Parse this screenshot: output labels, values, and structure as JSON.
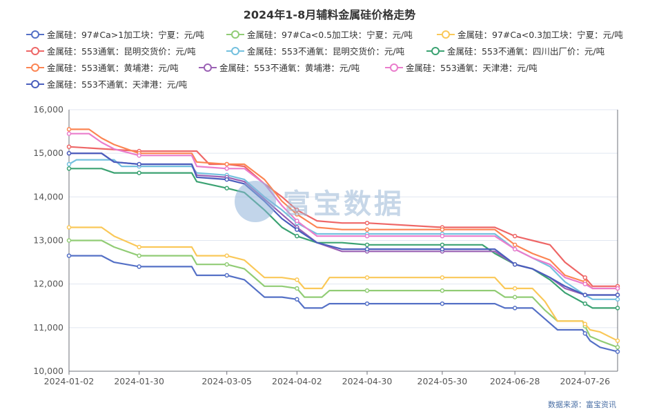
{
  "title": "2024年1-8月辅料金属硅价格走势",
  "source_note": "数据来源：富宝资讯",
  "watermark": "富宝数据",
  "chart_data": {
    "type": "line",
    "title": "2024年1-8月辅料金属硅价格走势",
    "xlabel": "",
    "ylabel": "",
    "ylim": [
      10000,
      16000
    ],
    "yticks": [
      "10,000",
      "11,000",
      "12,000",
      "13,000",
      "14,000",
      "15,000",
      "16,000"
    ],
    "xlim": [
      "2024-01-02",
      "2024-08-08"
    ],
    "xticks": [
      "2024-01-02",
      "2024-01-30",
      "2024-03-05",
      "2024-04-02",
      "2024-04-30",
      "2024-05-30",
      "2024-06-28",
      "2024-07-26"
    ],
    "grid": true,
    "legend_position": "top",
    "series": [
      {
        "name": "金属硅：97#Ca>1加工块：宁夏：元/吨",
        "color": "#5470c6",
        "points": [
          [
            "2024-01-02",
            12650
          ],
          [
            "2024-01-15",
            12650
          ],
          [
            "2024-01-20",
            12500
          ],
          [
            "2024-01-30",
            12400
          ],
          [
            "2024-02-20",
            12400
          ],
          [
            "2024-02-22",
            12200
          ],
          [
            "2024-03-05",
            12200
          ],
          [
            "2024-03-12",
            12100
          ],
          [
            "2024-03-15",
            11950
          ],
          [
            "2024-03-20",
            11700
          ],
          [
            "2024-03-27",
            11700
          ],
          [
            "2024-04-02",
            11650
          ],
          [
            "2024-04-05",
            11450
          ],
          [
            "2024-04-12",
            11450
          ],
          [
            "2024-04-15",
            11550
          ],
          [
            "2024-04-30",
            11550
          ],
          [
            "2024-05-30",
            11550
          ],
          [
            "2024-06-20",
            11550
          ],
          [
            "2024-06-24",
            11450
          ],
          [
            "2024-07-05",
            11450
          ],
          [
            "2024-07-10",
            11200
          ],
          [
            "2024-07-15",
            10950
          ],
          [
            "2024-07-25",
            10950
          ],
          [
            "2024-07-28",
            10700
          ],
          [
            "2024-08-01",
            10550
          ],
          [
            "2024-08-08",
            10450
          ]
        ]
      },
      {
        "name": "金属硅：97#Ca<0.5加工块：宁夏：元/吨",
        "color": "#91cc75",
        "points": [
          [
            "2024-01-02",
            13000
          ],
          [
            "2024-01-15",
            13000
          ],
          [
            "2024-01-20",
            12850
          ],
          [
            "2024-01-30",
            12650
          ],
          [
            "2024-02-20",
            12650
          ],
          [
            "2024-02-22",
            12450
          ],
          [
            "2024-03-05",
            12450
          ],
          [
            "2024-03-12",
            12350
          ],
          [
            "2024-03-15",
            12200
          ],
          [
            "2024-03-20",
            11950
          ],
          [
            "2024-03-27",
            11950
          ],
          [
            "2024-04-02",
            11900
          ],
          [
            "2024-04-05",
            11700
          ],
          [
            "2024-04-12",
            11700
          ],
          [
            "2024-04-15",
            11850
          ],
          [
            "2024-04-30",
            11850
          ],
          [
            "2024-05-30",
            11850
          ],
          [
            "2024-06-20",
            11850
          ],
          [
            "2024-06-24",
            11700
          ],
          [
            "2024-07-05",
            11700
          ],
          [
            "2024-07-10",
            11400
          ],
          [
            "2024-07-15",
            11150
          ],
          [
            "2024-07-25",
            11150
          ],
          [
            "2024-07-28",
            10800
          ],
          [
            "2024-08-01",
            10700
          ],
          [
            "2024-08-08",
            10550
          ]
        ]
      },
      {
        "name": "金属硅：97#Ca<0.3加工块：宁夏：元/吨",
        "color": "#fac858",
        "points": [
          [
            "2024-01-02",
            13300
          ],
          [
            "2024-01-15",
            13300
          ],
          [
            "2024-01-20",
            13100
          ],
          [
            "2024-01-30",
            12850
          ],
          [
            "2024-02-20",
            12850
          ],
          [
            "2024-02-22",
            12650
          ],
          [
            "2024-03-05",
            12650
          ],
          [
            "2024-03-12",
            12550
          ],
          [
            "2024-03-15",
            12400
          ],
          [
            "2024-03-20",
            12150
          ],
          [
            "2024-03-27",
            12150
          ],
          [
            "2024-04-02",
            12100
          ],
          [
            "2024-04-05",
            11900
          ],
          [
            "2024-04-12",
            11900
          ],
          [
            "2024-04-15",
            12150
          ],
          [
            "2024-04-30",
            12150
          ],
          [
            "2024-05-30",
            12150
          ],
          [
            "2024-06-20",
            12150
          ],
          [
            "2024-06-24",
            11900
          ],
          [
            "2024-07-05",
            11900
          ],
          [
            "2024-07-10",
            11600
          ],
          [
            "2024-07-15",
            11150
          ],
          [
            "2024-07-25",
            11150
          ],
          [
            "2024-07-28",
            10950
          ],
          [
            "2024-08-01",
            10900
          ],
          [
            "2024-08-08",
            10700
          ]
        ]
      },
      {
        "name": "金属硅：553通氧：昆明交货价：元/吨",
        "color": "#ee6666",
        "points": [
          [
            "2024-01-02",
            15150
          ],
          [
            "2024-01-30",
            15050
          ],
          [
            "2024-02-22",
            15050
          ],
          [
            "2024-02-27",
            14750
          ],
          [
            "2024-03-05",
            14750
          ],
          [
            "2024-03-12",
            14700
          ],
          [
            "2024-03-20",
            14300
          ],
          [
            "2024-03-27",
            14000
          ],
          [
            "2024-04-02",
            13700
          ],
          [
            "2024-04-10",
            13450
          ],
          [
            "2024-04-20",
            13400
          ],
          [
            "2024-04-30",
            13400
          ],
          [
            "2024-05-30",
            13300
          ],
          [
            "2024-06-20",
            13300
          ],
          [
            "2024-06-28",
            13100
          ],
          [
            "2024-07-05",
            13000
          ],
          [
            "2024-07-12",
            12900
          ],
          [
            "2024-07-18",
            12500
          ],
          [
            "2024-07-26",
            12150
          ],
          [
            "2024-07-29",
            11950
          ],
          [
            "2024-08-08",
            11950
          ]
        ]
      },
      {
        "name": "金属硅：553不通氧：昆明交货价：元/吨",
        "color": "#73c0de",
        "points": [
          [
            "2024-01-02",
            14750
          ],
          [
            "2024-01-05",
            14850
          ],
          [
            "2024-01-20",
            14850
          ],
          [
            "2024-01-23",
            14700
          ],
          [
            "2024-01-30",
            14700
          ],
          [
            "2024-02-20",
            14700
          ],
          [
            "2024-02-22",
            14550
          ],
          [
            "2024-03-05",
            14500
          ],
          [
            "2024-03-12",
            14400
          ],
          [
            "2024-03-20",
            14000
          ],
          [
            "2024-03-27",
            13700
          ],
          [
            "2024-04-02",
            13400
          ],
          [
            "2024-04-10",
            13150
          ],
          [
            "2024-04-20",
            13150
          ],
          [
            "2024-04-30",
            13150
          ],
          [
            "2024-05-30",
            13150
          ],
          [
            "2024-06-20",
            13150
          ],
          [
            "2024-06-28",
            12800
          ],
          [
            "2024-07-05",
            12600
          ],
          [
            "2024-07-12",
            12400
          ],
          [
            "2024-07-18",
            12050
          ],
          [
            "2024-07-26",
            11750
          ],
          [
            "2024-07-29",
            11650
          ],
          [
            "2024-08-08",
            11650
          ]
        ]
      },
      {
        "name": "金属硅：553不通氧：四川出厂价：元/吨",
        "color": "#3ba272",
        "points": [
          [
            "2024-01-02",
            14650
          ],
          [
            "2024-01-15",
            14650
          ],
          [
            "2024-01-20",
            14550
          ],
          [
            "2024-01-30",
            14550
          ],
          [
            "2024-02-20",
            14550
          ],
          [
            "2024-02-22",
            14350
          ],
          [
            "2024-03-05",
            14200
          ],
          [
            "2024-03-12",
            14100
          ],
          [
            "2024-03-20",
            13700
          ],
          [
            "2024-03-27",
            13300
          ],
          [
            "2024-04-02",
            13100
          ],
          [
            "2024-04-10",
            12950
          ],
          [
            "2024-04-20",
            12950
          ],
          [
            "2024-04-30",
            12900
          ],
          [
            "2024-05-30",
            12900
          ],
          [
            "2024-06-15",
            12900
          ],
          [
            "2024-06-20",
            12700
          ],
          [
            "2024-06-28",
            12450
          ],
          [
            "2024-07-05",
            12350
          ],
          [
            "2024-07-12",
            12100
          ],
          [
            "2024-07-18",
            11800
          ],
          [
            "2024-07-26",
            11550
          ],
          [
            "2024-07-29",
            11450
          ],
          [
            "2024-08-08",
            11450
          ]
        ]
      },
      {
        "name": "金属硅：553通氧：黄埔港：元/吨",
        "color": "#fc8452",
        "points": [
          [
            "2024-01-02",
            15550
          ],
          [
            "2024-01-10",
            15550
          ],
          [
            "2024-01-15",
            15350
          ],
          [
            "2024-01-20",
            15200
          ],
          [
            "2024-01-30",
            15000
          ],
          [
            "2024-02-20",
            15000
          ],
          [
            "2024-02-22",
            14800
          ],
          [
            "2024-03-05",
            14750
          ],
          [
            "2024-03-12",
            14750
          ],
          [
            "2024-03-20",
            14400
          ],
          [
            "2024-03-27",
            13900
          ],
          [
            "2024-04-02",
            13600
          ],
          [
            "2024-04-10",
            13300
          ],
          [
            "2024-04-20",
            13250
          ],
          [
            "2024-04-30",
            13250
          ],
          [
            "2024-05-30",
            13250
          ],
          [
            "2024-06-20",
            13250
          ],
          [
            "2024-06-28",
            12900
          ],
          [
            "2024-07-05",
            12700
          ],
          [
            "2024-07-12",
            12550
          ],
          [
            "2024-07-18",
            12200
          ],
          [
            "2024-07-26",
            12050
          ],
          [
            "2024-07-29",
            11900
          ],
          [
            "2024-08-08",
            11900
          ]
        ]
      },
      {
        "name": "金属硅：553不通氧：黄埔港：元/吨",
        "color": "#9a60b4",
        "points": [
          [
            "2024-01-02",
            15000
          ],
          [
            "2024-01-15",
            15000
          ],
          [
            "2024-01-20",
            14800
          ],
          [
            "2024-01-30",
            14750
          ],
          [
            "2024-02-20",
            14750
          ],
          [
            "2024-02-22",
            14500
          ],
          [
            "2024-03-05",
            14450
          ],
          [
            "2024-03-12",
            14350
          ],
          [
            "2024-03-20",
            13950
          ],
          [
            "2024-03-27",
            13600
          ],
          [
            "2024-04-02",
            13300
          ],
          [
            "2024-04-10",
            12950
          ],
          [
            "2024-04-20",
            12750
          ],
          [
            "2024-04-30",
            12750
          ],
          [
            "2024-05-30",
            12750
          ],
          [
            "2024-06-20",
            12750
          ],
          [
            "2024-06-28",
            12450
          ],
          [
            "2024-07-05",
            12350
          ],
          [
            "2024-07-12",
            12150
          ],
          [
            "2024-07-18",
            11900
          ],
          [
            "2024-07-26",
            11750
          ],
          [
            "2024-07-29",
            11750
          ],
          [
            "2024-08-08",
            11750
          ]
        ]
      },
      {
        "name": "金属硅：553通氧：天津港：元/吨",
        "color": "#ea7ccc",
        "points": [
          [
            "2024-01-02",
            15450
          ],
          [
            "2024-01-10",
            15450
          ],
          [
            "2024-01-15",
            15250
          ],
          [
            "2024-01-20",
            15100
          ],
          [
            "2024-01-30",
            14950
          ],
          [
            "2024-02-20",
            14950
          ],
          [
            "2024-02-22",
            14700
          ],
          [
            "2024-03-05",
            14650
          ],
          [
            "2024-03-12",
            14650
          ],
          [
            "2024-03-20",
            14300
          ],
          [
            "2024-03-27",
            13800
          ],
          [
            "2024-04-02",
            13450
          ],
          [
            "2024-04-10",
            13100
          ],
          [
            "2024-04-20",
            13100
          ],
          [
            "2024-04-30",
            13100
          ],
          [
            "2024-05-30",
            13100
          ],
          [
            "2024-06-20",
            13100
          ],
          [
            "2024-06-28",
            12800
          ],
          [
            "2024-07-05",
            12600
          ],
          [
            "2024-07-12",
            12450
          ],
          [
            "2024-07-18",
            12150
          ],
          [
            "2024-07-26",
            12000
          ],
          [
            "2024-07-29",
            11900
          ],
          [
            "2024-08-08",
            11900
          ]
        ]
      },
      {
        "name": "金属硅：553不通氧：天津港：元/吨",
        "color": "#4a5ebd",
        "points": [
          [
            "2024-01-02",
            15000
          ],
          [
            "2024-01-15",
            15000
          ],
          [
            "2024-01-20",
            14800
          ],
          [
            "2024-01-30",
            14750
          ],
          [
            "2024-02-20",
            14750
          ],
          [
            "2024-02-22",
            14450
          ],
          [
            "2024-03-05",
            14400
          ],
          [
            "2024-03-12",
            14300
          ],
          [
            "2024-03-20",
            13900
          ],
          [
            "2024-03-27",
            13500
          ],
          [
            "2024-04-02",
            13250
          ],
          [
            "2024-04-10",
            12950
          ],
          [
            "2024-04-20",
            12800
          ],
          [
            "2024-04-30",
            12800
          ],
          [
            "2024-05-30",
            12800
          ],
          [
            "2024-06-20",
            12800
          ],
          [
            "2024-06-28",
            12450
          ],
          [
            "2024-07-05",
            12350
          ],
          [
            "2024-07-12",
            12150
          ],
          [
            "2024-07-18",
            11950
          ],
          [
            "2024-07-26",
            11750
          ],
          [
            "2024-07-29",
            11750
          ],
          [
            "2024-08-08",
            11750
          ]
        ]
      }
    ]
  }
}
